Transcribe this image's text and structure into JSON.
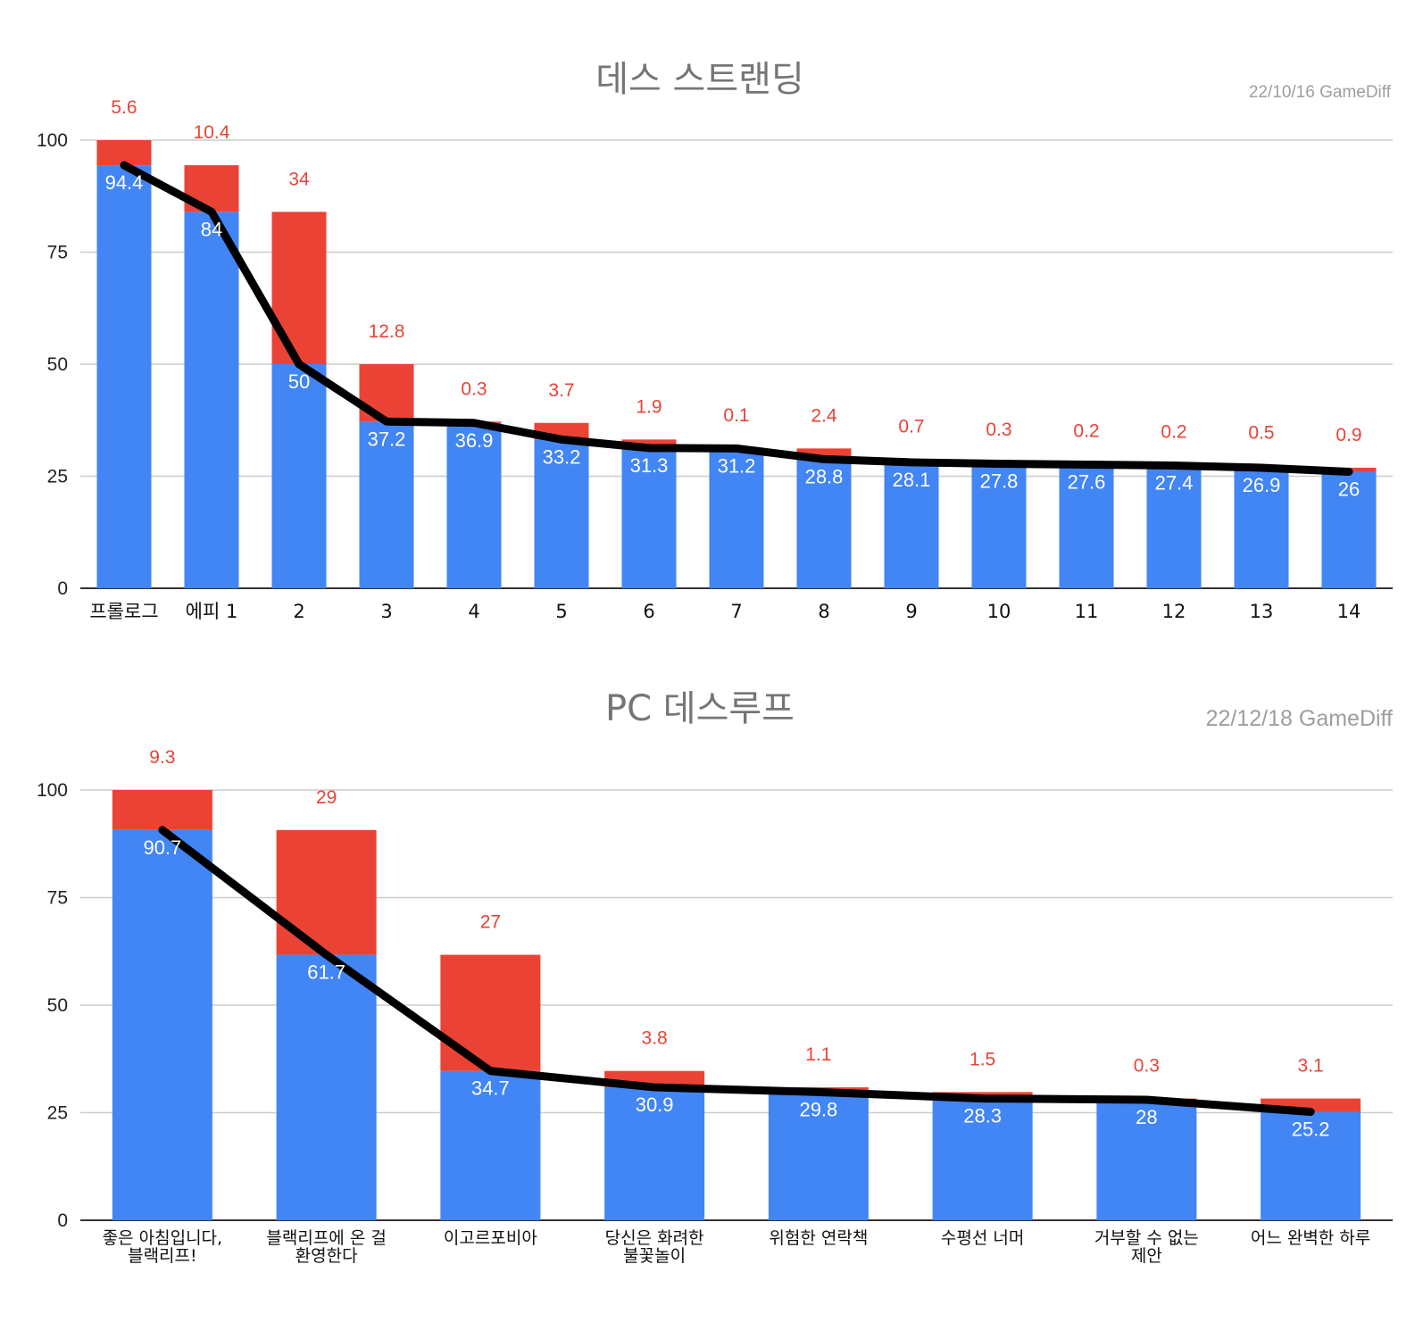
{
  "colors": {
    "base": "#4285f4",
    "extra": "#ea4335",
    "line": "#000000",
    "grid": "#cccccc",
    "axis": "#333333"
  },
  "chart_data": [
    {
      "type": "bar",
      "stacked": true,
      "title": "데스 스트랜딩",
      "stamp": "22/10/16  GameDiff",
      "ylim": [
        0,
        100
      ],
      "yticks": [
        0,
        25,
        50,
        75,
        100
      ],
      "grid": true,
      "categories": [
        "프롤로그",
        "에피 1",
        "2",
        "3",
        "4",
        "5",
        "6",
        "7",
        "8",
        "9",
        "10",
        "11",
        "12",
        "13",
        "14"
      ],
      "series": [
        {
          "values": [
            94.4,
            84,
            50,
            37.2,
            36.9,
            33.2,
            31.3,
            31.2,
            28.8,
            28.1,
            27.8,
            27.6,
            27.4,
            26.9,
            26
          ]
        },
        {
          "values": [
            5.6,
            10.4,
            34,
            12.8,
            0.3,
            3.7,
            1.9,
            0.1,
            2.4,
            0.7,
            0.3,
            0.2,
            0.2,
            0.5,
            0.9
          ]
        }
      ],
      "line": {
        "values": [
          94.4,
          84,
          50,
          37.2,
          36.9,
          33.2,
          31.3,
          31.2,
          28.8,
          28.1,
          27.8,
          27.6,
          27.4,
          26.9,
          26
        ]
      }
    },
    {
      "type": "bar",
      "stacked": true,
      "title": "PC 데스루프",
      "stamp": "22/12/18  GameDiff",
      "ylim": [
        0,
        100
      ],
      "yticks": [
        0,
        25,
        50,
        75,
        100
      ],
      "grid": true,
      "categories": [
        [
          "좋은 아침입니다,",
          "블랙리프!"
        ],
        [
          "블랙리프에 온 걸",
          "환영한다"
        ],
        [
          "이고르포비아"
        ],
        [
          "당신은 화려한",
          "불꽃놀이"
        ],
        [
          "위험한 연락책"
        ],
        [
          "수평선 너머"
        ],
        [
          "거부할 수 없는",
          "제안"
        ],
        [
          "어느 완벽한 하루"
        ]
      ],
      "series": [
        {
          "values": [
            90.7,
            61.7,
            34.7,
            30.9,
            29.8,
            28.3,
            28,
            25.2
          ]
        },
        {
          "values": [
            9.3,
            29,
            27,
            3.8,
            1.1,
            1.5,
            0.3,
            3.1
          ]
        }
      ],
      "line": {
        "values": [
          90.7,
          61.7,
          34.7,
          30.9,
          29.8,
          28.3,
          28,
          25.2
        ]
      }
    }
  ]
}
